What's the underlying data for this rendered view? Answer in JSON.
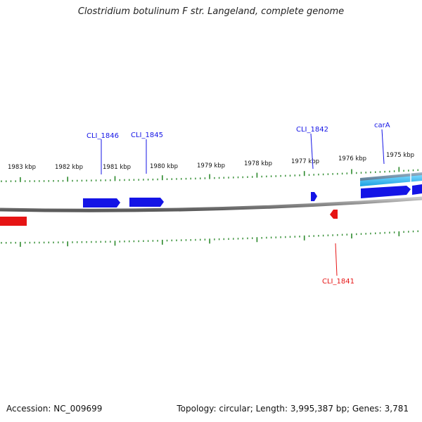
{
  "title": "Clostridium botulinum F str. Langeland, complete genome",
  "footer": {
    "accession": "Accession: NC_009699",
    "stats": "Topology: circular; Length: 3,995,387 bp; Genes: 3,781"
  },
  "colors": {
    "forward": "#1414e6",
    "reverse": "#e61414",
    "tick": "#2d8a2d",
    "backbone": "#8a8a8a",
    "rrna": "#2ab0e8"
  },
  "ticks": [
    {
      "label": "1983 kbp",
      "kbp": 1983
    },
    {
      "label": "1982 kbp",
      "kbp": 1982
    },
    {
      "label": "1981 kbp",
      "kbp": 1981
    },
    {
      "label": "1980 kbp",
      "kbp": 1980
    },
    {
      "label": "1979 kbp",
      "kbp": 1979
    },
    {
      "label": "1978 kbp",
      "kbp": 1978
    },
    {
      "label": "1977 kbp",
      "kbp": 1977
    },
    {
      "label": "1976 kbp",
      "kbp": 1976
    },
    {
      "label": "1975 kbp",
      "kbp": 1975
    }
  ],
  "genes": [
    {
      "label": "CLI_1846",
      "strand": "forward"
    },
    {
      "label": "CLI_1845",
      "strand": "forward"
    },
    {
      "label": "CLI_1842",
      "strand": "forward"
    },
    {
      "label": "carA",
      "strand": "forward"
    },
    {
      "label": "CLI_1841",
      "strand": "reverse"
    }
  ]
}
